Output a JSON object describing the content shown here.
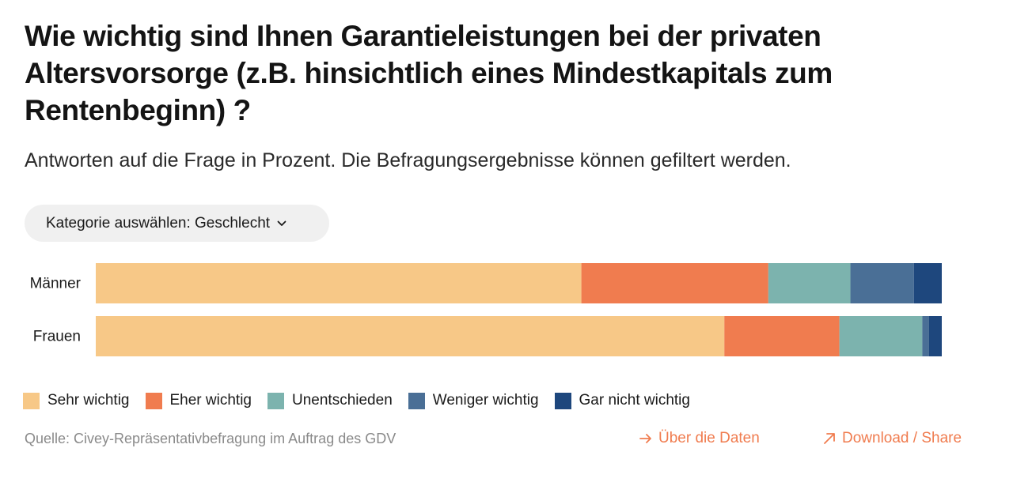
{
  "header": {
    "title": "Wie wichtig sind Ihnen Garantieleistungen bei der privaten Altersvorsorge (z.B. hinsichtlich eines Mindestkapitals zum Rentenbeginn) ?",
    "subtitle": "Antworten auf die Frage in Prozent. Die Befragungsergebnisse können gefiltert werden."
  },
  "filter": {
    "label": "Kategorie auswählen: Geschlecht",
    "icon": "chevron-down-icon"
  },
  "chart_data": {
    "type": "bar",
    "orientation": "horizontal",
    "stacked": true,
    "unit": "%",
    "categories": [
      "Männer",
      "Frauen"
    ],
    "series": [
      {
        "name": "Sehr wichtig",
        "color": "#f7c887",
        "values": [
          57.4,
          74.3
        ]
      },
      {
        "name": "Eher wichtig",
        "color": "#f07c4f",
        "values": [
          22.1,
          13.6
        ]
      },
      {
        "name": "Unentschieden",
        "color": "#7cb3ae",
        "values": [
          9.7,
          9.8
        ]
      },
      {
        "name": "Weniger wichtig",
        "color": "#4a6f96",
        "values": [
          7.5,
          0.8
        ]
      },
      {
        "name": "Gar nicht wichtig",
        "color": "#1e477d",
        "values": [
          3.3,
          1.5
        ]
      }
    ],
    "xlim": [
      0,
      100
    ],
    "grid": false,
    "legend_position": "bottom-left"
  },
  "footer": {
    "source": "Quelle: Civey-Repräsentativbefragung im Auftrag des GDV",
    "about_label": "Über die Daten",
    "about_icon": "arrow-right-icon",
    "share_label": "Download / Share",
    "share_icon": "arrow-up-right-icon",
    "accent": "#f07c4f"
  }
}
